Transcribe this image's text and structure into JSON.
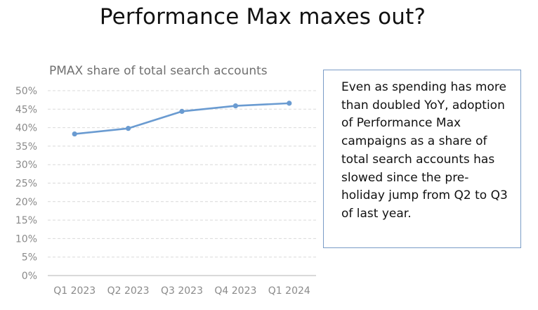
{
  "slide": {
    "title": "Performance Max maxes out?",
    "callout_text": "Even as spending has more than doubled YoY, adoption of Performance Max campaigns as a share of total search accounts has slowed since the pre-holiday jump from Q2 to Q3 of last year."
  },
  "chart_data": {
    "type": "line",
    "title": "PMAX share of total search accounts",
    "categories": [
      "Q1 2023",
      "Q2 2023",
      "Q3 2023",
      "Q4 2023",
      "Q1 2024"
    ],
    "values": [
      38.3,
      39.8,
      44.4,
      45.9,
      46.6
    ],
    "ylim": [
      0,
      50
    ],
    "y_ticks": [
      0,
      5,
      10,
      15,
      20,
      25,
      30,
      35,
      40,
      45,
      50
    ],
    "y_tick_labels": [
      "0%",
      "5%",
      "10%",
      "15%",
      "20%",
      "25%",
      "30%",
      "35%",
      "40%",
      "45%",
      "50%"
    ],
    "grid": true,
    "line_color": "#6a9bd1",
    "gridline_color": "#d9d9d9",
    "axis_color": "#d9d9d9"
  }
}
